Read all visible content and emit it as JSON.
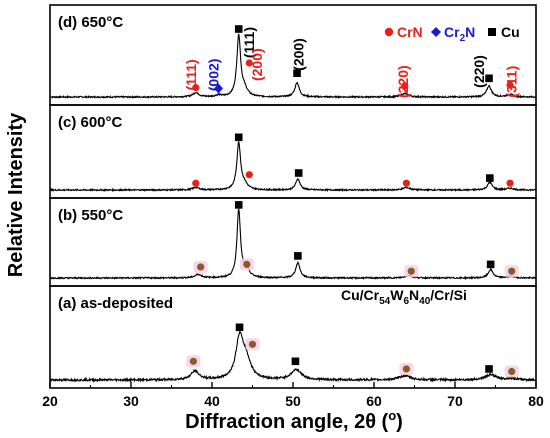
{
  "chart_data": {
    "type": "line",
    "xlabel": "Diffraction angle, 2θ (°)",
    "xlabel_parts": {
      "main": "Diffraction angle, 2",
      "theta": "θ",
      "open": " (",
      "deg": "o",
      "close": ")"
    },
    "ylabel": "Relative Intensity",
    "xlim": [
      20,
      80
    ],
    "xticks": [
      20,
      30,
      40,
      50,
      60,
      70,
      80
    ],
    "grid": false,
    "sample_label": {
      "text": "Cu/Cr54W6N40/Cr/Si",
      "parts": [
        "Cu/Cr",
        "54",
        "W",
        "6",
        "N",
        "40",
        "/Cr/Si"
      ]
    },
    "legend": [
      {
        "label": "CrN",
        "marker": "circle",
        "color": "#e8221b"
      },
      {
        "label": "Cr2N",
        "label_parts": [
          "Cr",
          "2",
          "N"
        ],
        "marker": "diamond",
        "color": "#1a1ad6"
      },
      {
        "label": "Cu",
        "marker": "square",
        "color": "#000000"
      }
    ],
    "panels": [
      {
        "label": "(d) 650°C",
        "noise": 0.8,
        "peaks": [
          {
            "x": 38.0,
            "h": 5,
            "w": 0.45
          },
          {
            "x": 40.8,
            "h": 2,
            "w": 0.4
          },
          {
            "x": 43.3,
            "h": 72,
            "w": 0.28
          },
          {
            "x": 44.0,
            "h": 8,
            "w": 0.45
          },
          {
            "x": 50.5,
            "h": 17,
            "w": 0.32
          },
          {
            "x": 63.8,
            "h": 4,
            "w": 0.5
          },
          {
            "x": 74.2,
            "h": 13,
            "w": 0.35
          },
          {
            "x": 76.8,
            "h": 3,
            "w": 0.5
          }
        ],
        "markers": [
          {
            "x": 38.0,
            "y": 11,
            "shape": "circle",
            "color": "#e8221b"
          },
          {
            "x": 40.8,
            "y": 10,
            "shape": "diamond",
            "color": "#1a1ad6"
          },
          {
            "x": 43.3,
            "y": 80,
            "shape": "square",
            "color": "#000000"
          },
          {
            "x": 44.6,
            "y": 40,
            "shape": "circle",
            "color": "#e8221b"
          },
          {
            "x": 50.5,
            "y": 28,
            "shape": "square",
            "color": "#000000"
          },
          {
            "x": 63.8,
            "y": 13,
            "shape": "circle",
            "color": "#e8221b"
          },
          {
            "x": 74.2,
            "y": 22,
            "shape": "square",
            "color": "#000000"
          },
          {
            "x": 76.8,
            "y": 14,
            "shape": "circle",
            "color": "#e8221b"
          }
        ],
        "peak_labels": [
          {
            "text": "(111)",
            "x": 38.0,
            "y": 26,
            "color": "#e8221b"
          },
          {
            "text": "(002)",
            "x": 40.8,
            "y": 26,
            "color": "#1a1ad6"
          },
          {
            "text": "(111)",
            "x": 45.2,
            "y": 64,
            "color": "#000000"
          },
          {
            "text": "(200)",
            "x": 46.2,
            "y": 38,
            "color": "#e8221b"
          },
          {
            "text": "(200)",
            "x": 51.3,
            "y": 50,
            "color": "#000000"
          },
          {
            "text": "(220)",
            "x": 64.2,
            "y": 18,
            "color": "#e8221b"
          },
          {
            "text": "(220)",
            "x": 73.6,
            "y": 30,
            "color": "#000000"
          },
          {
            "text": "(311)",
            "x": 77.6,
            "y": 18,
            "color": "#e8221b"
          }
        ]
      },
      {
        "label": "(c) 600°C",
        "noise": 0.8,
        "peaks": [
          {
            "x": 38.0,
            "h": 3,
            "w": 0.45
          },
          {
            "x": 43.3,
            "h": 55,
            "w": 0.28
          },
          {
            "x": 44.0,
            "h": 6,
            "w": 0.45
          },
          {
            "x": 50.6,
            "h": 13,
            "w": 0.32
          },
          {
            "x": 64.0,
            "h": 3,
            "w": 0.5
          },
          {
            "x": 74.3,
            "h": 9,
            "w": 0.35
          },
          {
            "x": 76.8,
            "h": 2,
            "w": 0.5
          }
        ],
        "markers": [
          {
            "x": 38.0,
            "y": 8,
            "shape": "circle",
            "color": "#e8221b"
          },
          {
            "x": 43.3,
            "y": 62,
            "shape": "square",
            "color": "#000000"
          },
          {
            "x": 44.6,
            "y": 18,
            "shape": "circle",
            "color": "#e8221b"
          },
          {
            "x": 50.7,
            "y": 20,
            "shape": "square",
            "color": "#000000"
          },
          {
            "x": 64.0,
            "y": 8,
            "shape": "circle",
            "color": "#e8221b"
          },
          {
            "x": 74.3,
            "y": 14,
            "shape": "square",
            "color": "#000000"
          },
          {
            "x": 76.8,
            "y": 8,
            "shape": "circle",
            "color": "#e8221b"
          }
        ]
      },
      {
        "label": "(b) 550°C",
        "noise": 0.8,
        "peaks": [
          {
            "x": 38.3,
            "h": 4,
            "w": 0.5
          },
          {
            "x": 43.3,
            "h": 80,
            "w": 0.26
          },
          {
            "x": 44.2,
            "h": 10,
            "w": 0.45
          },
          {
            "x": 50.6,
            "h": 18,
            "w": 0.32
          },
          {
            "x": 64.3,
            "h": 3,
            "w": 0.5
          },
          {
            "x": 74.4,
            "h": 10,
            "w": 0.35
          },
          {
            "x": 76.9,
            "h": 2,
            "w": 0.5
          }
        ],
        "markers": [
          {
            "x": 38.6,
            "y": 13,
            "shape": "circle",
            "color": "#8b5a2b",
            "halo": true
          },
          {
            "x": 43.3,
            "y": 86,
            "shape": "square",
            "color": "#000000"
          },
          {
            "x": 44.3,
            "y": 16,
            "shape": "circle",
            "color": "#8b5a2b",
            "halo": true
          },
          {
            "x": 50.6,
            "y": 26,
            "shape": "square",
            "color": "#000000"
          },
          {
            "x": 64.6,
            "y": 8,
            "shape": "circle",
            "color": "#8b5a2b",
            "halo": true
          },
          {
            "x": 74.4,
            "y": 16,
            "shape": "square",
            "color": "#000000"
          },
          {
            "x": 77.0,
            "y": 8,
            "shape": "circle",
            "color": "#8b5a2b",
            "halo": true
          }
        ]
      },
      {
        "label": "(a) as-deposited",
        "noise": 1.2,
        "peaks": [
          {
            "x": 37.9,
            "h": 10,
            "w": 0.6
          },
          {
            "x": 43.4,
            "h": 46,
            "w": 0.55
          },
          {
            "x": 44.2,
            "h": 22,
            "w": 0.7
          },
          {
            "x": 50.4,
            "h": 12,
            "w": 0.75
          },
          {
            "x": 63.8,
            "h": 5,
            "w": 0.8
          },
          {
            "x": 74.4,
            "h": 6,
            "w": 0.8
          },
          {
            "x": 77.0,
            "h": 2,
            "w": 0.7
          }
        ],
        "markers": [
          {
            "x": 37.7,
            "y": 22,
            "shape": "circle",
            "color": "#8b5a2b",
            "halo": true
          },
          {
            "x": 43.4,
            "y": 62,
            "shape": "square",
            "color": "#000000"
          },
          {
            "x": 45.0,
            "y": 42,
            "shape": "circle",
            "color": "#8b5a2b",
            "halo": true
          },
          {
            "x": 50.3,
            "y": 22,
            "shape": "square",
            "color": "#000000"
          },
          {
            "x": 64.0,
            "y": 13,
            "shape": "circle",
            "color": "#8b5a2b",
            "halo": true
          },
          {
            "x": 74.2,
            "y": 13,
            "shape": "square",
            "color": "#000000"
          },
          {
            "x": 77.0,
            "y": 10,
            "shape": "circle",
            "color": "#8b5a2b",
            "halo": true
          }
        ]
      }
    ]
  }
}
